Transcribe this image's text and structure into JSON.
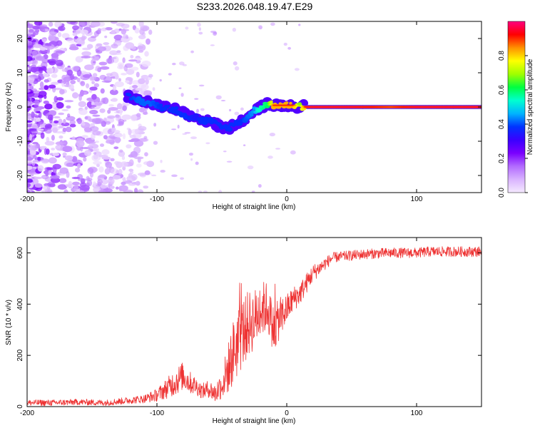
{
  "title": "S233.2026.048.19.47.E29",
  "chart_data": [
    {
      "type": "heatmap",
      "xlabel": "Height of straight line (km)",
      "ylabel": "Frequency (Hz)",
      "xlim": [
        -200,
        150
      ],
      "ylim": [
        -25,
        25
      ],
      "x_ticks": [
        -200,
        -100,
        0,
        100
      ],
      "y_ticks": [
        -20,
        -10,
        0,
        10,
        20
      ],
      "colorbar": {
        "label": "Normalized spectral amplitude",
        "range": [
          0,
          1
        ],
        "ticks": [
          "0.0",
          "0.2",
          "0.4",
          "0.6",
          "0.8"
        ],
        "colors": [
          "#f5eaff",
          "#d9b3ff",
          "#b26bff",
          "#7a00ff",
          "#3a00ff",
          "#0033ff",
          "#00b4ff",
          "#00ffd0",
          "#00ff40",
          "#a0ff00",
          "#ffff00",
          "#ff9000",
          "#ff0000",
          "#ff0080"
        ]
      },
      "ridge": {
        "x": [
          -123,
          -115,
          -105,
          -95,
          -85,
          -80,
          -75,
          -70,
          -65,
          -60,
          -55,
          -50,
          -45,
          -40,
          -35,
          -30,
          -25,
          -20,
          -15,
          -10,
          -5,
          0,
          5,
          10,
          15,
          50,
          80,
          100,
          150
        ],
        "freq": [
          3,
          2,
          1,
          0,
          -1,
          -2,
          -3,
          -3,
          -4,
          -4,
          -5,
          -6,
          -6,
          -5,
          -4,
          -3,
          -1,
          0,
          1,
          0.5,
          0.5,
          0.5,
          0.5,
          0.3,
          0,
          0,
          0,
          0,
          0
        ],
        "amplitude": [
          0.3,
          0.35,
          0.35,
          0.3,
          0.3,
          0.3,
          0.3,
          0.25,
          0.3,
          0.3,
          0.3,
          0.3,
          0.3,
          0.3,
          0.3,
          0.35,
          0.4,
          0.55,
          0.6,
          0.9,
          0.9,
          0.9,
          0.9,
          0.7,
          0.95,
          0.95,
          0.9,
          0.95,
          0.95
        ]
      }
    },
    {
      "type": "line",
      "xlabel": "Height of straight line (km)",
      "ylabel": "SNR (10 * v/v)",
      "xlim": [
        -200,
        150
      ],
      "ylim": [
        0,
        660
      ],
      "x_ticks": [
        -200,
        -100,
        0,
        100
      ],
      "y_ticks": [
        0,
        200,
        400,
        600
      ],
      "series": [
        {
          "name": "SNR",
          "color": "#ee3333",
          "x": [
            -200,
            -180,
            -160,
            -140,
            -120,
            -110,
            -100,
            -90,
            -85,
            -80,
            -75,
            -70,
            -65,
            -60,
            -55,
            -50,
            -45,
            -40,
            -35,
            -30,
            -25,
            -20,
            -15,
            -10,
            -5,
            0,
            5,
            10,
            15,
            20,
            25,
            30,
            35,
            40,
            50,
            60,
            70,
            80,
            90,
            100,
            110,
            120,
            130,
            140,
            150
          ],
          "y": [
            15,
            15,
            18,
            15,
            25,
            30,
            45,
            80,
            100,
            120,
            95,
            80,
            60,
            70,
            50,
            90,
            150,
            230,
            280,
            320,
            340,
            380,
            390,
            300,
            350,
            380,
            420,
            440,
            480,
            520,
            540,
            560,
            580,
            585,
            590,
            595,
            598,
            600,
            600,
            600,
            605,
            605,
            605,
            605,
            605
          ],
          "noise": [
            12,
            12,
            12,
            12,
            14,
            16,
            25,
            45,
            55,
            55,
            45,
            35,
            30,
            35,
            40,
            60,
            100,
            140,
            140,
            130,
            120,
            110,
            100,
            90,
            80,
            60,
            50,
            45,
            40,
            35,
            28,
            25,
            22,
            20,
            20,
            20,
            20,
            20,
            20,
            20,
            20,
            20,
            20,
            20,
            20
          ]
        }
      ]
    }
  ]
}
